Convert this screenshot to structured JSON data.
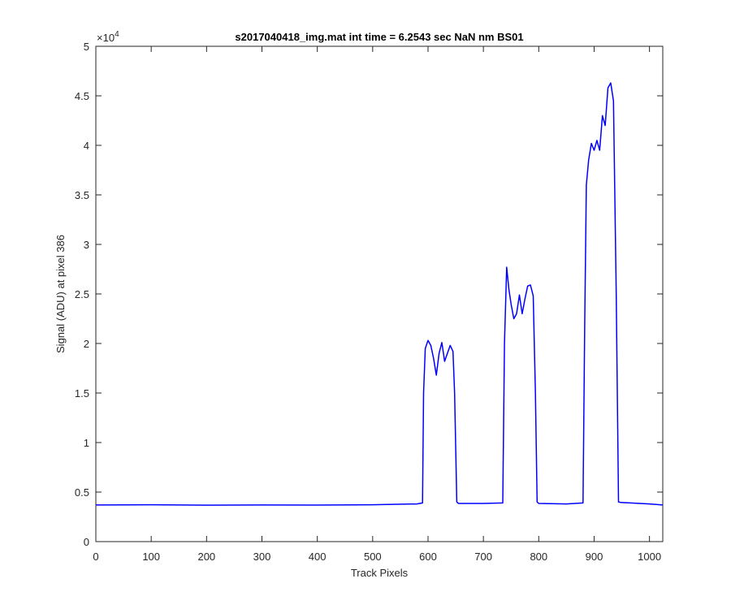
{
  "chart_data": {
    "type": "line",
    "title": "s2017040418_img.mat int time = 6.2543 sec  NaN nm BS01",
    "xlabel": "Track Pixels",
    "ylabel": "Signal (ADU) at pixel 386",
    "xlim": [
      0,
      1024
    ],
    "ylim": [
      0,
      50000
    ],
    "x_ticks": [
      0,
      100,
      200,
      300,
      400,
      500,
      600,
      700,
      800,
      900,
      1000
    ],
    "y_ticks": [
      0,
      5000,
      10000,
      15000,
      20000,
      25000,
      30000,
      35000,
      40000,
      45000,
      50000
    ],
    "y_tick_labels": [
      "0",
      "0.5",
      "1",
      "1.5",
      "2",
      "2.5",
      "3",
      "3.5",
      "4",
      "4.5",
      "5"
    ],
    "y_exponent_label": "×10",
    "y_exponent_power": "4",
    "grid": false,
    "series": [
      {
        "color": "#0000ff",
        "x": [
          0,
          100,
          200,
          300,
          400,
          500,
          580,
          590,
          592,
          595,
          600,
          605,
          610,
          615,
          620,
          625,
          630,
          635,
          640,
          645,
          648,
          652,
          655,
          700,
          735,
          738,
          742,
          746,
          750,
          755,
          760,
          765,
          770,
          775,
          780,
          785,
          790,
          794,
          797,
          800,
          850,
          880,
          883,
          886,
          890,
          895,
          900,
          905,
          910,
          915,
          920,
          925,
          930,
          935,
          940,
          944,
          948,
          1000,
          1024
        ],
        "y": [
          3700,
          3720,
          3680,
          3700,
          3690,
          3720,
          3800,
          3900,
          15000,
          19500,
          20300,
          19800,
          18500,
          16800,
          19000,
          20100,
          18200,
          19000,
          19800,
          19200,
          15000,
          4000,
          3850,
          3850,
          3900,
          20000,
          27700,
          25500,
          24000,
          22500,
          23000,
          24900,
          23000,
          24500,
          25800,
          25900,
          24800,
          15000,
          4000,
          3850,
          3800,
          3900,
          22000,
          36000,
          38500,
          40200,
          39500,
          40500,
          39500,
          43000,
          42000,
          45800,
          46300,
          44500,
          25000,
          4000,
          3950,
          3800,
          3700
        ]
      }
    ]
  }
}
